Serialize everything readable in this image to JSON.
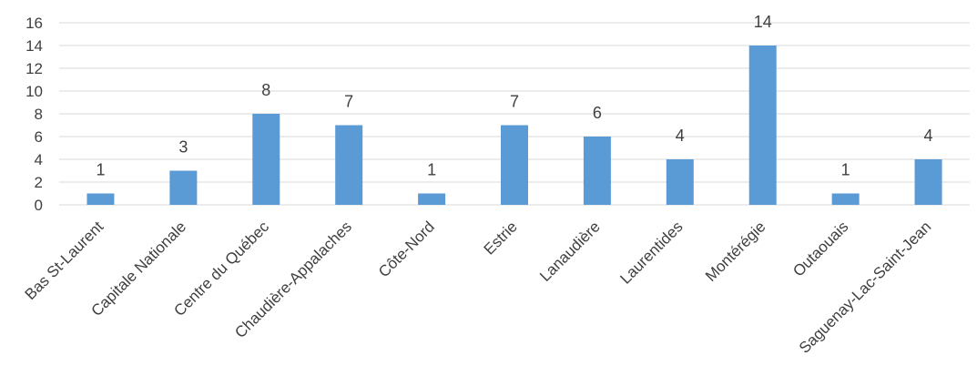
{
  "chart_data": {
    "type": "bar",
    "title": "",
    "xlabel": "",
    "ylabel": "",
    "ylim": [
      0,
      16
    ],
    "yticks": [
      0,
      2,
      4,
      6,
      8,
      10,
      12,
      14,
      16
    ],
    "grid": true,
    "legend": "none",
    "categories": [
      "Bas St-Laurent",
      "Capitale Nationale",
      "Centre du Québec",
      "Chaudière-Appalaches",
      "Côte-Nord",
      "Estrie",
      "Lanaudière",
      "Laurentides",
      "Montérégie",
      "Outaouais",
      "Saguenay-Lac-Saint-Jean"
    ],
    "values": [
      1,
      3,
      8,
      7,
      1,
      7,
      6,
      4,
      14,
      1,
      4
    ],
    "colors": {
      "bar": "#5b9bd5",
      "grid": "#d9d9d9",
      "text": "#404040"
    }
  }
}
